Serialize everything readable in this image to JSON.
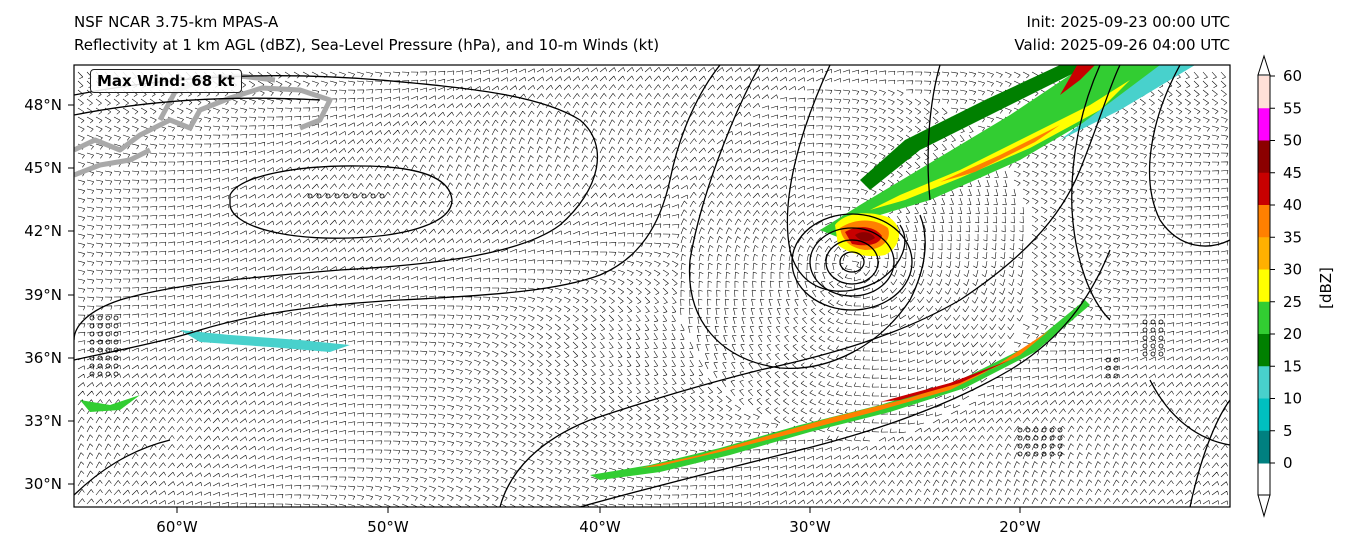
{
  "header": {
    "model": "NSF NCAR 3.75-km MPAS-A",
    "fields": "Reflectivity at 1 km AGL (dBZ), Sea-Level Pressure (hPa), and 10-m Winds (kt)",
    "init": "Init: 2025-09-23 00:00 UTC",
    "valid": "Valid: 2025-09-26 04:00 UTC"
  },
  "annotation": {
    "max_wind": "Max Wind: 68 kt"
  },
  "axes": {
    "lat_labels": [
      "48°N",
      "45°N",
      "42°N",
      "39°N",
      "36°N",
      "33°N",
      "30°N"
    ],
    "lon_labels": [
      "60°W",
      "50°W",
      "40°W",
      "30°W",
      "20°W"
    ]
  },
  "colorbar": {
    "label": "[dBZ]",
    "ticks": [
      "60",
      "55",
      "50",
      "45",
      "40",
      "35",
      "30",
      "25",
      "20",
      "15",
      "10",
      "5",
      "0"
    ],
    "colors": [
      "#ffe0d8",
      "#ff00ff",
      "#8b0000",
      "#c80000",
      "#ff8000",
      "#ffb000",
      "#ffff00",
      "#32cd32",
      "#008000",
      "#48d1cc",
      "#00c0c0",
      "#008080"
    ]
  },
  "colors": {
    "coast": "#aaaaaa",
    "isobar": "#000000",
    "frame": "#000000"
  }
}
